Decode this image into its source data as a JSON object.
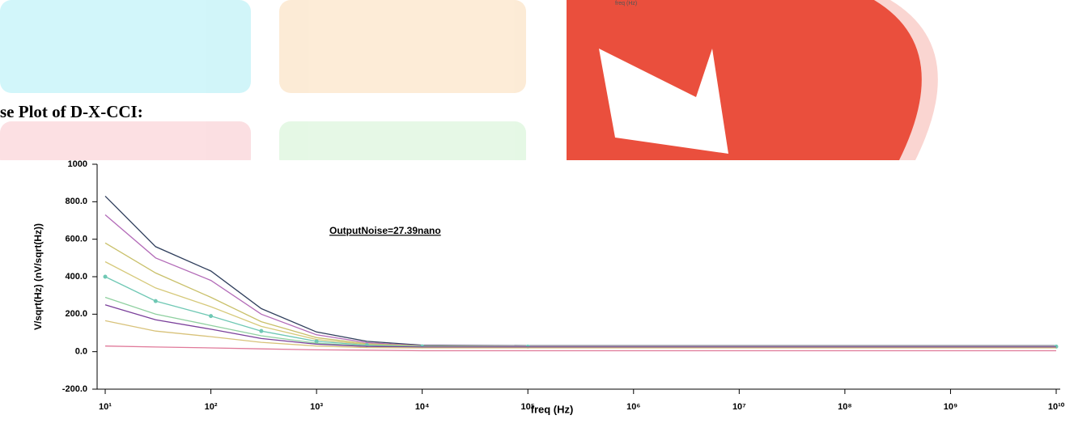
{
  "top_caption": "freq (Hz)",
  "heading": "se Plot of D-X-CCI:",
  "chart_data": {
    "type": "line",
    "annotation": "OutputNoise=27.39nano",
    "xlabel": "freq (Hz)",
    "ylabel": "V/sqrt(Hz) (nV/sqrt(Hz))",
    "xscale": "log",
    "grid": false,
    "x": [
      10,
      30,
      100,
      300,
      1000,
      3000,
      10000,
      100000,
      10000000000
    ],
    "series": [
      {
        "color": "#2f3e5c",
        "values": [
          830,
          560,
          430,
          230,
          105,
          55,
          35,
          32,
          32
        ]
      },
      {
        "color": "#b36bb8",
        "values": [
          730,
          500,
          380,
          200,
          90,
          48,
          32,
          30,
          30
        ]
      },
      {
        "color": "#c9c06a",
        "values": [
          580,
          420,
          290,
          160,
          75,
          42,
          30,
          28,
          28
        ]
      },
      {
        "color": "#d6c97a",
        "values": [
          480,
          340,
          240,
          135,
          65,
          38,
          29,
          28,
          28
        ]
      },
      {
        "color": "#6fc8b4",
        "marker": "circle",
        "values": [
          400,
          270,
          190,
          110,
          55,
          35,
          28,
          27,
          27
        ]
      },
      {
        "color": "#8fd0a0",
        "values": [
          290,
          200,
          140,
          85,
          45,
          30,
          26,
          26,
          26
        ]
      },
      {
        "color": "#7a3f9a",
        "values": [
          250,
          170,
          120,
          70,
          40,
          28,
          25,
          25,
          25
        ]
      },
      {
        "color": "#d8c27a",
        "values": [
          165,
          110,
          80,
          50,
          30,
          22,
          20,
          20,
          20
        ]
      },
      {
        "color": "#e07a9a",
        "values": [
          30,
          25,
          20,
          15,
          10,
          8,
          5,
          5,
          5
        ]
      }
    ],
    "xlim": [
      10,
      10000000000
    ],
    "ylim": [
      -200,
      1000
    ],
    "xticks": [
      {
        "value": 10,
        "label": "10¹"
      },
      {
        "value": 100,
        "label": "10²"
      },
      {
        "value": 1000,
        "label": "10³"
      },
      {
        "value": 10000,
        "label": "10⁴"
      },
      {
        "value": 100000,
        "label": "10⁵"
      },
      {
        "value": 1000000,
        "label": "10⁶"
      },
      {
        "value": 10000000,
        "label": "10⁷"
      },
      {
        "value": 100000000,
        "label": "10⁸"
      },
      {
        "value": 1000000000,
        "label": "10⁹"
      },
      {
        "value": 10000000000,
        "label": "10¹⁰"
      }
    ],
    "yticks": [
      {
        "value": -200,
        "label": "-200.0"
      },
      {
        "value": 0,
        "label": "0.0"
      },
      {
        "value": 200,
        "label": "200.0"
      },
      {
        "value": 400,
        "label": "400.0"
      },
      {
        "value": 600,
        "label": "600.0"
      },
      {
        "value": 800,
        "label": "800.0"
      },
      1000
    ]
  }
}
